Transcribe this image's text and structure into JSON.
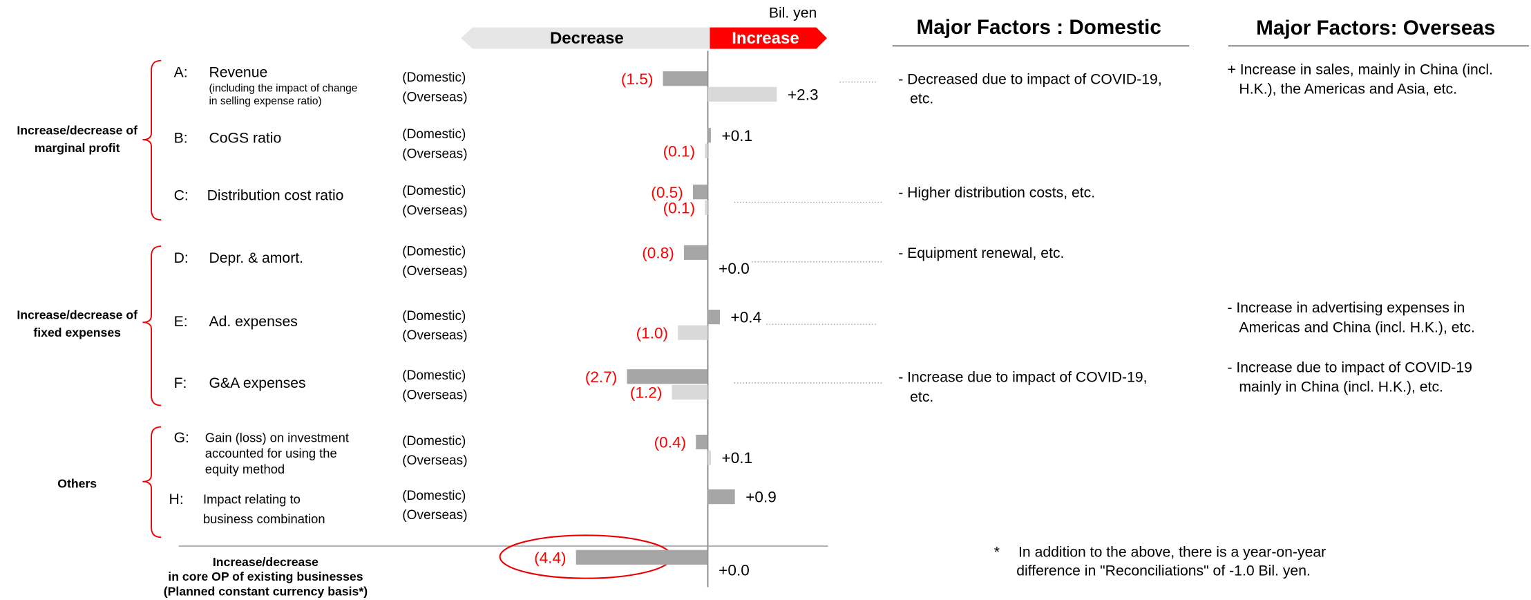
{
  "chart_data": {
    "type": "bar",
    "orientation": "horizontal",
    "unit": "Bil. yen",
    "decrease_label": "Decrease",
    "increase_label": "Increase",
    "domestic_title": "Major Factors : Domestic",
    "overseas_title": "Major Factors: Overseas",
    "groups": [
      "Increase/decrease of\nmarginal profit",
      "Increase/decrease of\nfixed expenses",
      "Others"
    ],
    "letters": [
      "A:",
      "B:",
      "C:",
      "D:",
      "E:",
      "F:",
      "G:",
      "H:",
      null
    ],
    "categories": [
      "Revenue",
      "CoGS ratio",
      "Distribution cost ratio",
      "Depr. & amort.",
      "Ad. expenses",
      "G&A expenses",
      "Gain (loss) on investment\naccounted for using the\nequity method",
      "Impact relating to\nbusiness combination",
      "Increase/decrease\nin core OP of existing businesses\n(Planned constant currency basis*)"
    ],
    "category_notes": [
      "(including the impact of change\nin selling expense ratio)",
      null,
      null,
      null,
      null,
      null,
      null,
      null,
      null
    ],
    "series": [
      {
        "name": "(Domestic)",
        "color": "#a6a6a6",
        "values": [
          -1.5,
          0.1,
          -0.5,
          -0.8,
          0.4,
          -2.7,
          -0.4,
          0.9,
          -4.4
        ],
        "value_labels": [
          "(1.5)",
          "+0.1",
          "(0.5)",
          "(0.8)",
          "+0.4",
          "(2.7)",
          "(0.4)",
          "+0.9",
          "(4.4)"
        ]
      },
      {
        "name": "(Overseas)",
        "color": "#d9d9d9",
        "values": [
          2.3,
          -0.1,
          -0.1,
          0.0,
          -1.0,
          -1.2,
          0.1,
          null,
          0.0
        ],
        "value_labels": [
          "+2.3",
          "(0.1)",
          "(0.1)",
          "+0.0",
          "(1.0)",
          "(1.2)",
          "+0.1",
          null,
          "+0.0"
        ]
      }
    ],
    "negative_label_color": "#ff0000",
    "domestic_factors": [
      [
        "-  Decreased due to impact of COVID-19,",
        "etc."
      ],
      null,
      [
        "- Higher distribution costs, etc."
      ],
      [
        "- Equipment renewal, etc."
      ],
      null,
      [
        "- Increase due to impact of COVID-19,",
        "etc."
      ],
      null,
      null,
      null
    ],
    "overseas_factors": [
      [
        "+ Increase in sales, mainly in China (incl.",
        "H.K.), the Americas and Asia, etc."
      ],
      null,
      null,
      null,
      [
        "- Increase in advertising expenses in",
        "Americas and China (incl. H.K.), etc."
      ],
      [
        "- Increase due to impact of COVID-19",
        "mainly in China (incl. H.K.), etc."
      ],
      null,
      null,
      null
    ],
    "footnote": {
      "mark": "*",
      "lines": [
        "In addition to the above, there is a year-on-year",
        "difference in \"Reconciliations\" of -1.0 Bil. yen."
      ]
    }
  }
}
